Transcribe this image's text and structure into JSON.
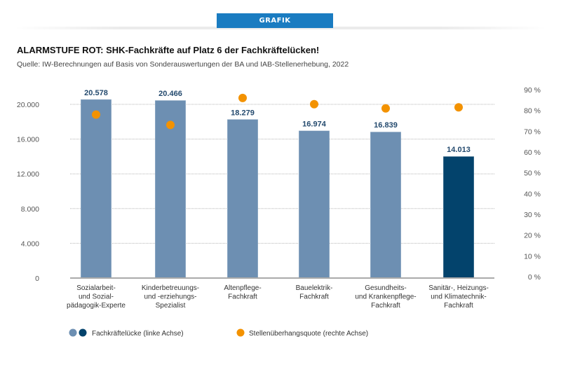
{
  "header": {
    "tab_label": "GRAFIK",
    "title": "ALARMSTUFE ROT: SHK-Fachkräfte auf Platz 6 der Fachkräftelücken!",
    "source": "Quelle: IW-Berechnungen auf Basis von Sonderauswertungen der BA und IAB-Stellenerhebung, 2022"
  },
  "colors": {
    "bar_default": "#6d8fb2",
    "bar_highlight": "#03436c",
    "dot": "#f39200",
    "tab": "#1a7cc1",
    "value_label": "#244a6e"
  },
  "chart_data": {
    "type": "bar",
    "title": "ALARMSTUFE ROT: SHK-Fachkräfte auf Platz 6 der Fachkräftelücken!",
    "subtitle": "Quelle: IW-Berechnungen auf Basis von Sonderauswertungen der BA und IAB-Stellenerhebung, 2022",
    "categories": [
      [
        "Sozialarbeit-",
        "und Sozial-",
        "pädagogik-Experte"
      ],
      [
        "Kinderbetreuungs-",
        "und -erziehungs-",
        "Spezialist"
      ],
      [
        "Altenpflege-",
        "Fachkraft"
      ],
      [
        "Bauelektrik-",
        "Fachkraft"
      ],
      [
        "Gesundheits-",
        "und Krankenpflege-",
        "Fachkraft"
      ],
      [
        "Sanitär-, Heizungs-",
        "und Klimatechnik-",
        "Fachkraft"
      ]
    ],
    "series": [
      {
        "name": "Fachkräftelücke (linke Achse)",
        "type": "bar",
        "axis": "left",
        "values": [
          20578,
          20466,
          18279,
          16974,
          16839,
          14013
        ],
        "labels": [
          "20.578",
          "20.466",
          "18.279",
          "16.974",
          "16.839",
          "14.013"
        ],
        "highlight_index": 5
      },
      {
        "name": "Stellenüberhangsquote (rechte Achse)",
        "type": "scatter",
        "axis": "right",
        "values": [
          78,
          73,
          86,
          83,
          81,
          81.5
        ]
      }
    ],
    "left_axis": {
      "ylim": [
        0,
        20000
      ],
      "ticks": [
        0,
        4000,
        8000,
        12000,
        16000,
        20000
      ],
      "tick_labels": [
        "0",
        "4.000",
        "8.000",
        "12.000",
        "16.000",
        "20.000"
      ]
    },
    "right_axis": {
      "ylim": [
        0,
        90
      ],
      "ticks": [
        0,
        10,
        20,
        30,
        40,
        50,
        60,
        70,
        80,
        90
      ],
      "tick_labels": [
        "0 %",
        "10 %",
        "20 %",
        "30 %",
        "40 %",
        "50 %",
        "60 %",
        "70 %",
        "80 %",
        "90 %"
      ]
    },
    "grid": true,
    "legend": {
      "placement": "bottom",
      "items": [
        "Fachkräftelücke (linke Achse)",
        "Stellenüberhangsquote (rechte Achse)"
      ]
    }
  }
}
